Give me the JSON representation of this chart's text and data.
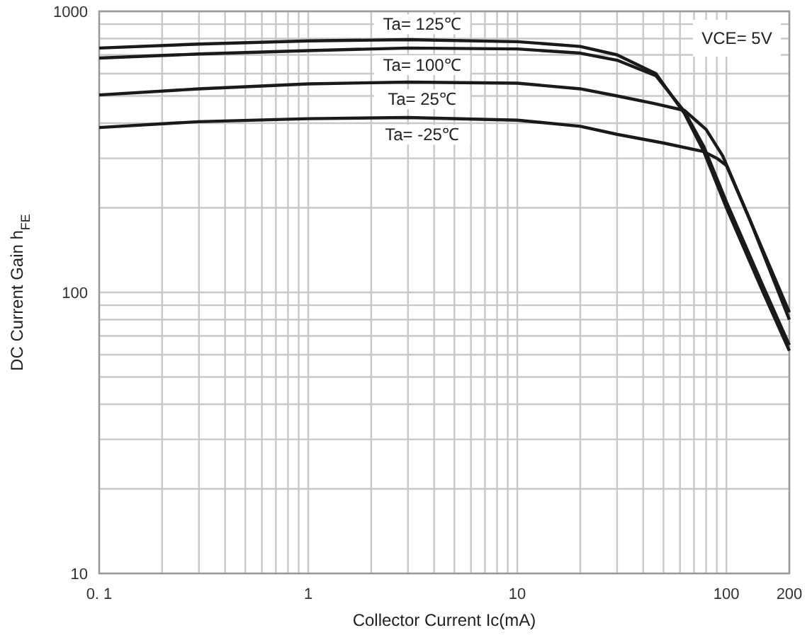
{
  "chart_data": {
    "type": "line",
    "xlabel": "Collector Current   Ic(mA)",
    "ylabel": "DC Current Gain   h$_{FE}$",
    "log": "xy",
    "grid": true,
    "line_style": "solid",
    "marker": "none",
    "xlim": [
      0.1,
      200
    ],
    "ylim": [
      10,
      1000
    ],
    "xticks": [
      {
        "value": 0.1,
        "label": "0. 1"
      },
      1,
      10,
      100,
      200
    ],
    "yticks": [
      10,
      100,
      1000
    ],
    "annotations": [
      "VCE= 5V"
    ],
    "series": [
      {
        "name": "Ta= 125℃",
        "color": "#1a1a1a",
        "x": [
          0.1,
          0.3,
          1,
          3,
          10,
          20,
          30,
          46,
          63,
          78,
          100,
          150,
          200
        ],
        "values": [
          740,
          765,
          785,
          793,
          780,
          750,
          700,
          600,
          433,
          317,
          200,
          100,
          62
        ]
      },
      {
        "name": "Ta= 100℃",
        "color": "#1a1a1a",
        "x": [
          0.1,
          0.3,
          1,
          3,
          10,
          20,
          30,
          46,
          63,
          78,
          100,
          150,
          200
        ],
        "values": [
          682,
          705,
          725,
          740,
          735,
          710,
          670,
          590,
          440,
          330,
          210,
          105,
          65
        ]
      },
      {
        "name": "Ta= 25℃",
        "color": "#1a1a1a",
        "x": [
          0.1,
          0.3,
          1,
          3,
          10,
          20,
          30,
          45,
          63,
          80,
          96,
          130,
          200
        ],
        "values": [
          504,
          530,
          552,
          560,
          555,
          530,
          500,
          470,
          444,
          380,
          306,
          180,
          80
        ]
      },
      {
        "name": "Ta= -25℃",
        "color": "#1a1a1a",
        "x": [
          0.1,
          0.3,
          1,
          3,
          10,
          20,
          30,
          50,
          78,
          90,
          100,
          130,
          200
        ],
        "values": [
          386,
          405,
          415,
          419,
          410,
          390,
          365,
          340,
          317,
          300,
          283,
          180,
          85
        ]
      }
    ]
  }
}
